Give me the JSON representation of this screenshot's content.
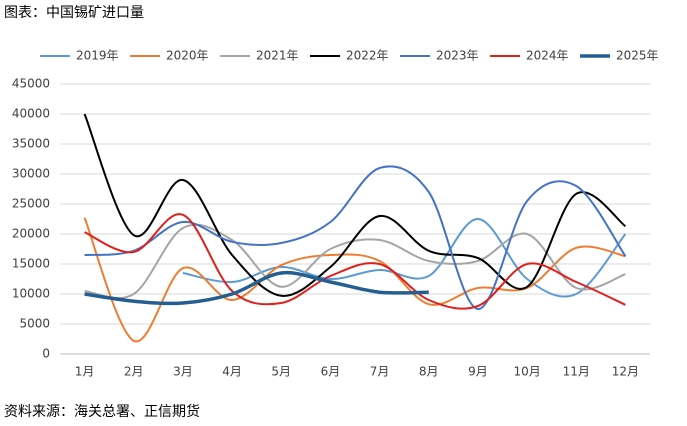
{
  "chart_data": {
    "type": "line",
    "title": "图表：中国锡矿进口量",
    "source": "资料来源：海关总署、正信期货",
    "categories": [
      "1月",
      "2月",
      "3月",
      "4月",
      "5月",
      "6月",
      "7月",
      "8月",
      "9月",
      "10月",
      "11月",
      "12月"
    ],
    "ylim": [
      0,
      45000
    ],
    "yticks": [
      0,
      5000,
      10000,
      15000,
      20000,
      25000,
      30000,
      35000,
      40000,
      45000
    ],
    "grid": true,
    "legend": "top",
    "series": [
      {
        "name": "2019年",
        "color": "#5b9bd5",
        "width": 2,
        "values": [
          null,
          null,
          13500,
          12000,
          14500,
          12500,
          14000,
          13000,
          22500,
          12500,
          10000,
          20000
        ]
      },
      {
        "name": "2020年",
        "color": "#ed7d31",
        "width": 2,
        "values": [
          22700,
          2200,
          14300,
          9000,
          14800,
          16500,
          15500,
          8300,
          11000,
          11000,
          17700,
          16300
        ]
      },
      {
        "name": "2021年",
        "color": "#a5a5a5",
        "width": 2,
        "values": [
          10500,
          10000,
          21000,
          19000,
          11200,
          17500,
          19000,
          15500,
          15500,
          20000,
          11000,
          13300
        ]
      },
      {
        "name": "2022年",
        "color": "#000000",
        "width": 2,
        "values": [
          40000,
          19800,
          29000,
          16500,
          9700,
          14500,
          23000,
          17200,
          16000,
          11200,
          26700,
          21300
        ]
      },
      {
        "name": "2023年",
        "color": "#4472c4",
        "width": 2,
        "values": [
          16500,
          17200,
          22000,
          18700,
          18500,
          22000,
          31000,
          27000,
          7500,
          25500,
          28000,
          16300
        ]
      },
      {
        "name": "2024年",
        "color": "#e0201b",
        "width": 2,
        "values": [
          20300,
          17000,
          23200,
          10500,
          8500,
          13000,
          15000,
          9000,
          8000,
          15000,
          12000,
          8200
        ]
      },
      {
        "name": "2025年",
        "color": "#255e91",
        "width": 3.5,
        "values": [
          10000,
          8800,
          8500,
          10000,
          13500,
          12000,
          10300,
          10300,
          null,
          null,
          null,
          null
        ]
      }
    ]
  }
}
